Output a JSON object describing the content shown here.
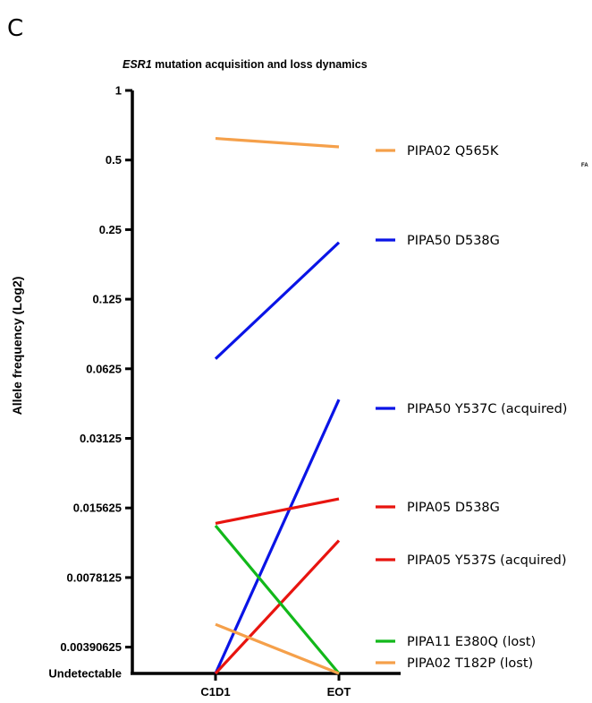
{
  "panel_letter": "C",
  "corner_note": "FA",
  "chart_data": {
    "type": "line",
    "title_gene": "ESR1",
    "title_rest": " mutation acquisition and loss dynamics",
    "xlabel": "",
    "ylabel": "Allele frequency (Log2)",
    "y_scale": "log2",
    "categories": [
      "C1D1",
      "EOT"
    ],
    "y_ticks": [
      {
        "value": 1,
        "label": "1"
      },
      {
        "value": 0.5,
        "label": "0.5"
      },
      {
        "value": 0.25,
        "label": "0.25"
      },
      {
        "value": 0.125,
        "label": "0.125"
      },
      {
        "value": 0.0625,
        "label": "0.0625"
      },
      {
        "value": 0.03125,
        "label": "0.03125"
      },
      {
        "value": 0.015625,
        "label": "0.015625"
      },
      {
        "value": 0.0078125,
        "label": "0.0078125"
      },
      {
        "value": 0.00390625,
        "label": "0.00390625"
      },
      {
        "value": 0.002,
        "label": "Undetectable"
      }
    ],
    "undetectable_value": 0.002,
    "series": [
      {
        "name": "PIPA02 Q565K",
        "color": "#f5a04a",
        "values": [
          0.62,
          0.57
        ]
      },
      {
        "name": "PIPA50 D538G",
        "color": "#0a14e6",
        "values": [
          0.069,
          0.22
        ]
      },
      {
        "name": "PIPA50 Y537C (acquired)",
        "color": "#0a14e6",
        "values": [
          0.002,
          0.046
        ]
      },
      {
        "name": "PIPA05 D538G",
        "color": "#e8140f",
        "values": [
          0.0134,
          0.0171
        ]
      },
      {
        "name": "PIPA05 Y537S (acquired)",
        "color": "#e8140f",
        "values": [
          0.002,
          0.0113
        ]
      },
      {
        "name": "PIPA11 E380Q (lost)",
        "color": "#12b81a",
        "values": [
          0.0131,
          0.002
        ]
      },
      {
        "name": "PIPA02 T182P (lost)",
        "color": "#f5a04a",
        "values": [
          0.0049,
          0.002
        ]
      }
    ]
  }
}
